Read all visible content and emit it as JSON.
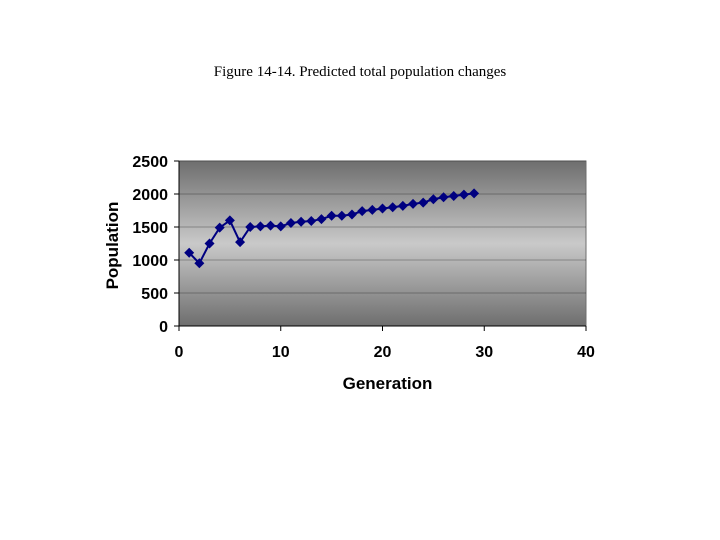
{
  "caption": "Figure 14-14. Predicted total population changes",
  "chart_data": {
    "type": "line",
    "title": "",
    "xlabel": "Generation",
    "ylabel": "Population",
    "xlim": [
      0,
      40
    ],
    "ylim": [
      0,
      2500
    ],
    "x_ticks": [
      0,
      10,
      20,
      30,
      40
    ],
    "y_ticks": [
      0,
      500,
      1000,
      1500,
      2000,
      2500
    ],
    "grid": "horizontal",
    "legend": "none",
    "marker": "diamond",
    "colors": {
      "series": "#000080",
      "plot_edge": "#6e6e6e",
      "plot_center": "#c9c9c9",
      "axis": "#000000"
    },
    "series": [
      {
        "x": [
          1,
          2,
          3,
          4,
          5,
          6,
          7,
          8,
          9,
          10,
          11,
          12,
          13,
          14,
          15,
          16,
          17,
          18,
          19,
          20,
          21,
          22,
          23,
          24,
          25,
          26,
          27,
          28,
          29
        ],
        "values": [
          1110,
          950,
          1250,
          1490,
          1600,
          1270,
          1500,
          1510,
          1520,
          1510,
          1560,
          1580,
          1590,
          1620,
          1670,
          1670,
          1690,
          1740,
          1760,
          1780,
          1800,
          1820,
          1850,
          1870,
          1920,
          1950,
          1970,
          1990,
          2010
        ]
      }
    ]
  }
}
